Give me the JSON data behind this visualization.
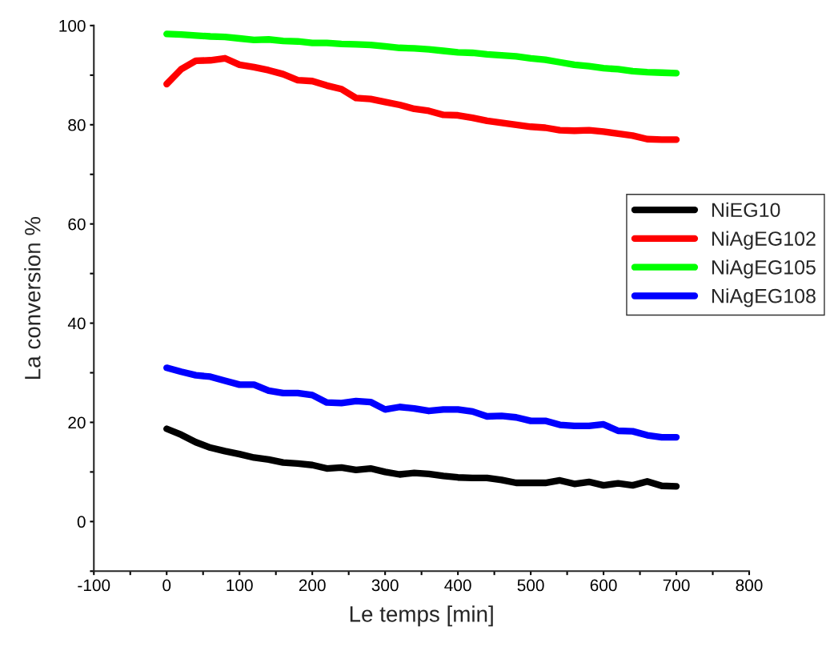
{
  "chart_data": {
    "type": "line",
    "xlabel": "Le temps [min]",
    "ylabel": "La conversion %",
    "x": [
      0,
      20,
      40,
      60,
      80,
      100,
      120,
      140,
      160,
      180,
      200,
      220,
      240,
      260,
      280,
      300,
      320,
      340,
      360,
      380,
      400,
      420,
      440,
      460,
      480,
      500,
      520,
      540,
      560,
      580,
      600,
      620,
      640,
      660,
      680,
      700
    ],
    "series": [
      {
        "name": "NiEG10",
        "color": "#000000",
        "values": [
          18.7,
          17.5,
          16.0,
          14.9,
          14.2,
          13.6,
          12.9,
          12.5,
          11.9,
          11.7,
          11.4,
          10.7,
          10.9,
          10.4,
          10.7,
          10.0,
          9.5,
          9.8,
          9.6,
          9.2,
          8.9,
          8.8,
          8.8,
          8.4,
          7.8,
          7.8,
          7.8,
          8.3,
          7.6,
          8.0,
          7.3,
          7.7,
          7.3,
          8.1,
          7.2,
          7.1
        ]
      },
      {
        "name": "NiAgEG102",
        "color": "#ff0000",
        "values": [
          88.2,
          91.2,
          92.9,
          93.0,
          93.4,
          92.1,
          91.6,
          91.0,
          90.2,
          89.0,
          88.8,
          87.9,
          87.2,
          85.4,
          85.2,
          84.6,
          84.0,
          83.2,
          82.8,
          82.0,
          81.9,
          81.4,
          80.8,
          80.4,
          80.0,
          79.6,
          79.4,
          78.9,
          78.8,
          78.9,
          78.6,
          78.2,
          77.8,
          77.1,
          77.0,
          77.0
        ]
      },
      {
        "name": "NiAgEG105",
        "color": "#00ff00",
        "values": [
          98.3,
          98.2,
          98.0,
          97.8,
          97.7,
          97.4,
          97.1,
          97.2,
          96.9,
          96.8,
          96.5,
          96.5,
          96.3,
          96.2,
          96.1,
          95.8,
          95.5,
          95.4,
          95.2,
          94.9,
          94.6,
          94.5,
          94.2,
          94.0,
          93.8,
          93.4,
          93.1,
          92.6,
          92.1,
          91.8,
          91.4,
          91.2,
          90.8,
          90.6,
          90.5,
          90.4
        ]
      },
      {
        "name": "NiAgEG108",
        "color": "#0000ff",
        "values": [
          31.0,
          30.2,
          29.5,
          29.2,
          28.4,
          27.6,
          27.6,
          26.4,
          25.9,
          25.9,
          25.5,
          24.0,
          23.9,
          24.3,
          24.1,
          22.6,
          23.1,
          22.8,
          22.3,
          22.6,
          22.6,
          22.2,
          21.2,
          21.3,
          21.0,
          20.3,
          20.3,
          19.5,
          19.3,
          19.3,
          19.6,
          18.3,
          18.2,
          17.4,
          17.0,
          17.0
        ]
      }
    ],
    "xlim": [
      -100,
      800
    ],
    "xticks": [
      -100,
      {
        "value": -50,
        "label": null
      },
      0,
      {
        "value": 50,
        "label": null
      },
      100,
      {
        "value": 150,
        "label": null
      },
      200,
      {
        "value": 250,
        "label": null
      },
      300,
      {
        "value": 350,
        "label": null
      },
      400,
      {
        "value": 450,
        "label": null
      },
      500,
      {
        "value": 550,
        "label": null
      },
      600,
      {
        "value": 650,
        "label": null
      },
      700,
      {
        "value": 750,
        "label": null
      },
      800
    ],
    "ylim": [
      -10,
      100
    ],
    "yticks": [
      {
        "value": -10,
        "label": null
      },
      0,
      {
        "value": 10,
        "label": null
      },
      20,
      {
        "value": 30,
        "label": null
      },
      40,
      {
        "value": 50,
        "label": null
      },
      60,
      {
        "value": 70,
        "label": null
      },
      80,
      {
        "value": 90,
        "label": null
      },
      100
    ],
    "grid": false,
    "legend": "center right",
    "marker": "none",
    "line_style": "solid"
  }
}
